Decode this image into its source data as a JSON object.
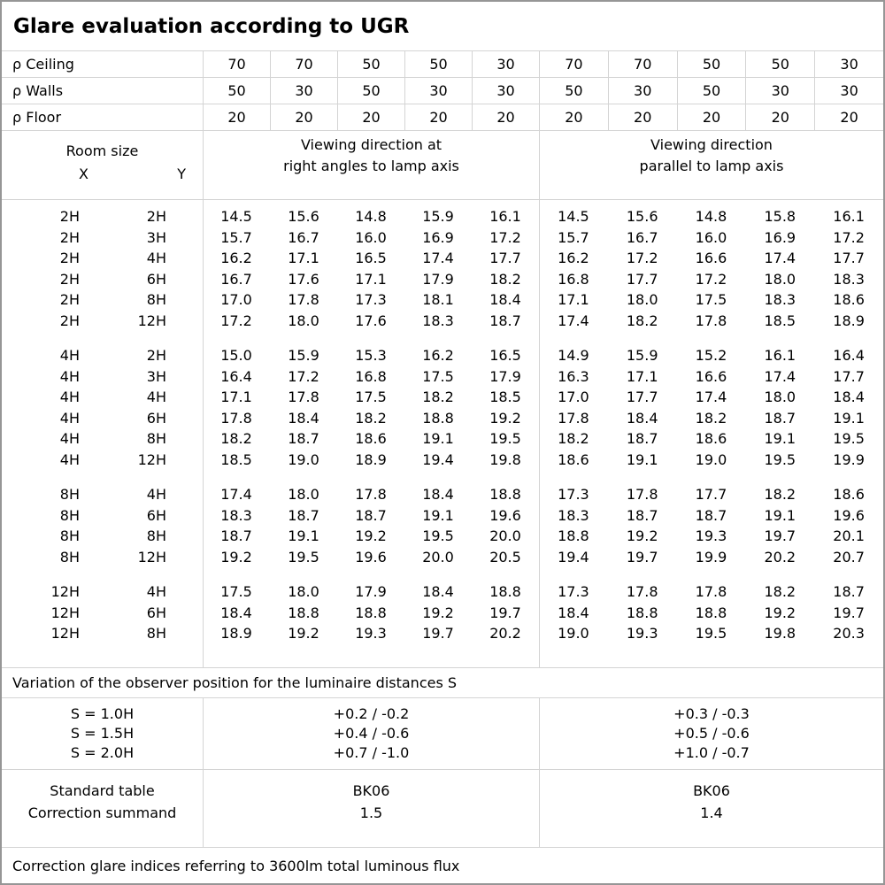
{
  "title": "Glare evaluation according to UGR",
  "reflectance": {
    "rows": [
      {
        "label": "ρ Ceiling",
        "values": [
          "70",
          "70",
          "50",
          "50",
          "30",
          "70",
          "70",
          "50",
          "50",
          "30"
        ]
      },
      {
        "label": "ρ Walls",
        "values": [
          "50",
          "30",
          "50",
          "30",
          "30",
          "50",
          "30",
          "50",
          "30",
          "30"
        ]
      },
      {
        "label": "ρ Floor",
        "values": [
          "20",
          "20",
          "20",
          "20",
          "20",
          "20",
          "20",
          "20",
          "20",
          "20"
        ]
      }
    ]
  },
  "header": {
    "room_size_label": "Room size",
    "x_label": "X",
    "y_label": "Y",
    "right_angles_heading_line1": "Viewing direction at",
    "right_angles_heading_line2": "right angles to lamp axis",
    "parallel_heading_line1": "Viewing direction",
    "parallel_heading_line2": "parallel to lamp axis"
  },
  "ugr_table": {
    "groups": [
      {
        "rows": [
          {
            "x": "2H",
            "y": "2H",
            "right_angles": [
              "14.5",
              "15.6",
              "14.8",
              "15.9",
              "16.1"
            ],
            "parallel": [
              "14.5",
              "15.6",
              "14.8",
              "15.8",
              "16.1"
            ]
          },
          {
            "x": "2H",
            "y": "3H",
            "right_angles": [
              "15.7",
              "16.7",
              "16.0",
              "16.9",
              "17.2"
            ],
            "parallel": [
              "15.7",
              "16.7",
              "16.0",
              "16.9",
              "17.2"
            ]
          },
          {
            "x": "2H",
            "y": "4H",
            "right_angles": [
              "16.2",
              "17.1",
              "16.5",
              "17.4",
              "17.7"
            ],
            "parallel": [
              "16.2",
              "17.2",
              "16.6",
              "17.4",
              "17.7"
            ]
          },
          {
            "x": "2H",
            "y": "6H",
            "right_angles": [
              "16.7",
              "17.6",
              "17.1",
              "17.9",
              "18.2"
            ],
            "parallel": [
              "16.8",
              "17.7",
              "17.2",
              "18.0",
              "18.3"
            ]
          },
          {
            "x": "2H",
            "y": "8H",
            "right_angles": [
              "17.0",
              "17.8",
              "17.3",
              "18.1",
              "18.4"
            ],
            "parallel": [
              "17.1",
              "18.0",
              "17.5",
              "18.3",
              "18.6"
            ]
          },
          {
            "x": "2H",
            "y": "12H",
            "right_angles": [
              "17.2",
              "18.0",
              "17.6",
              "18.3",
              "18.7"
            ],
            "parallel": [
              "17.4",
              "18.2",
              "17.8",
              "18.5",
              "18.9"
            ]
          }
        ]
      },
      {
        "rows": [
          {
            "x": "4H",
            "y": "2H",
            "right_angles": [
              "15.0",
              "15.9",
              "15.3",
              "16.2",
              "16.5"
            ],
            "parallel": [
              "14.9",
              "15.9",
              "15.2",
              "16.1",
              "16.4"
            ]
          },
          {
            "x": "4H",
            "y": "3H",
            "right_angles": [
              "16.4",
              "17.2",
              "16.8",
              "17.5",
              "17.9"
            ],
            "parallel": [
              "16.3",
              "17.1",
              "16.6",
              "17.4",
              "17.7"
            ]
          },
          {
            "x": "4H",
            "y": "4H",
            "right_angles": [
              "17.1",
              "17.8",
              "17.5",
              "18.2",
              "18.5"
            ],
            "parallel": [
              "17.0",
              "17.7",
              "17.4",
              "18.0",
              "18.4"
            ]
          },
          {
            "x": "4H",
            "y": "6H",
            "right_angles": [
              "17.8",
              "18.4",
              "18.2",
              "18.8",
              "19.2"
            ],
            "parallel": [
              "17.8",
              "18.4",
              "18.2",
              "18.7",
              "19.1"
            ]
          },
          {
            "x": "4H",
            "y": "8H",
            "right_angles": [
              "18.2",
              "18.7",
              "18.6",
              "19.1",
              "19.5"
            ],
            "parallel": [
              "18.2",
              "18.7",
              "18.6",
              "19.1",
              "19.5"
            ]
          },
          {
            "x": "4H",
            "y": "12H",
            "right_angles": [
              "18.5",
              "19.0",
              "18.9",
              "19.4",
              "19.8"
            ],
            "parallel": [
              "18.6",
              "19.1",
              "19.0",
              "19.5",
              "19.9"
            ]
          }
        ]
      },
      {
        "rows": [
          {
            "x": "8H",
            "y": "4H",
            "right_angles": [
              "17.4",
              "18.0",
              "17.8",
              "18.4",
              "18.8"
            ],
            "parallel": [
              "17.3",
              "17.8",
              "17.7",
              "18.2",
              "18.6"
            ]
          },
          {
            "x": "8H",
            "y": "6H",
            "right_angles": [
              "18.3",
              "18.7",
              "18.7",
              "19.1",
              "19.6"
            ],
            "parallel": [
              "18.3",
              "18.7",
              "18.7",
              "19.1",
              "19.6"
            ]
          },
          {
            "x": "8H",
            "y": "8H",
            "right_angles": [
              "18.7",
              "19.1",
              "19.2",
              "19.5",
              "20.0"
            ],
            "parallel": [
              "18.8",
              "19.2",
              "19.3",
              "19.7",
              "20.1"
            ]
          },
          {
            "x": "8H",
            "y": "12H",
            "right_angles": [
              "19.2",
              "19.5",
              "19.6",
              "20.0",
              "20.5"
            ],
            "parallel": [
              "19.4",
              "19.7",
              "19.9",
              "20.2",
              "20.7"
            ]
          }
        ]
      },
      {
        "rows": [
          {
            "x": "12H",
            "y": "4H",
            "right_angles": [
              "17.5",
              "18.0",
              "17.9",
              "18.4",
              "18.8"
            ],
            "parallel": [
              "17.3",
              "17.8",
              "17.8",
              "18.2",
              "18.7"
            ]
          },
          {
            "x": "12H",
            "y": "6H",
            "right_angles": [
              "18.4",
              "18.8",
              "18.8",
              "19.2",
              "19.7"
            ],
            "parallel": [
              "18.4",
              "18.8",
              "18.8",
              "19.2",
              "19.7"
            ]
          },
          {
            "x": "12H",
            "y": "8H",
            "right_angles": [
              "18.9",
              "19.2",
              "19.3",
              "19.7",
              "20.2"
            ],
            "parallel": [
              "19.0",
              "19.3",
              "19.5",
              "19.8",
              "20.3"
            ]
          }
        ]
      }
    ]
  },
  "variation_note": "Variation of the observer position for the luminaire distances S",
  "s_block": {
    "rows": [
      {
        "label": "S = 1.0H",
        "right_angles": "+0.2 / -0.2",
        "parallel": "+0.3 / -0.3"
      },
      {
        "label": "S = 1.5H",
        "right_angles": "+0.4 / -0.6",
        "parallel": "+0.5 / -0.6"
      },
      {
        "label": "S = 2.0H",
        "right_angles": "+0.7 / -1.0",
        "parallel": "+1.0 / -0.7"
      }
    ]
  },
  "standard_block": {
    "rows": [
      {
        "label": "Standard table",
        "right_angles": "BK06",
        "parallel": "BK06"
      },
      {
        "label": "Correction summand",
        "right_angles": "1.5",
        "parallel": "1.4"
      }
    ]
  },
  "footer_note": "Correction glare indices referring to 3600lm total luminous flux",
  "colors": {
    "grid_line": "#d4d4d4",
    "outer_border": "#969696",
    "text": "#000000",
    "background": "#ffffff"
  }
}
